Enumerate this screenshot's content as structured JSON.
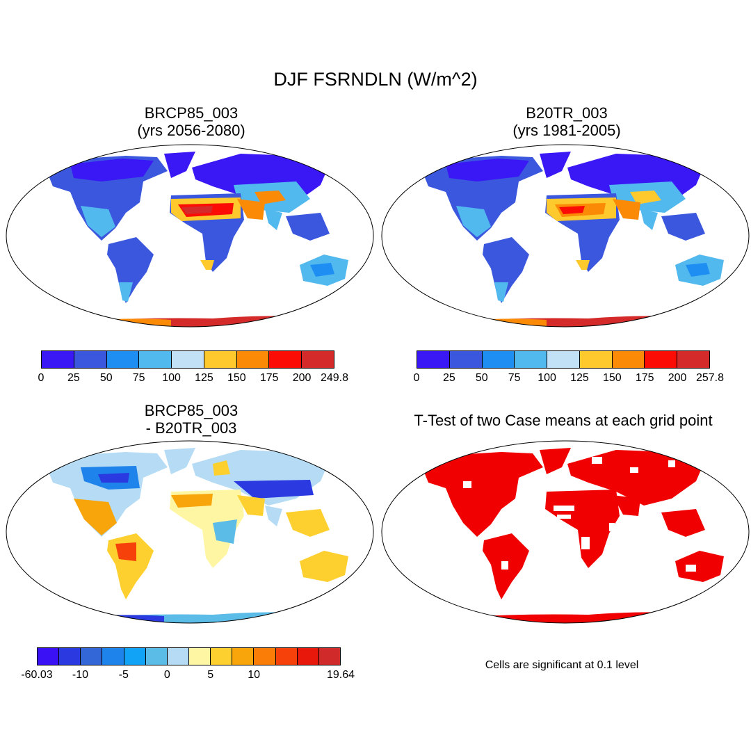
{
  "title": "DJF FSRNDLN (W/m^2)",
  "panels": {
    "case1": {
      "title_line1": "BRCP85_003",
      "title_line2": "(yrs 2056-2080)",
      "colorbar": {
        "colors": [
          "#3a17f5",
          "#3b57de",
          "#1e8ef2",
          "#52b9ef",
          "#c2e1f6",
          "#fdc92d",
          "#fb8a06",
          "#fb0d05",
          "#d42a2a"
        ],
        "labels": [
          "0",
          "25",
          "50",
          "75",
          "100",
          "125",
          "150",
          "175",
          "200",
          "249.8"
        ]
      }
    },
    "case2": {
      "title_line1": "B20TR_003",
      "title_line2": "(yrs 1981-2005)",
      "colorbar": {
        "colors": [
          "#3a17f5",
          "#3b57de",
          "#1e8ef2",
          "#52b9ef",
          "#c2e1f6",
          "#fdc92d",
          "#fb8a06",
          "#fb0d05",
          "#d42a2a"
        ],
        "labels": [
          "0",
          "25",
          "50",
          "75",
          "100",
          "125",
          "150",
          "175",
          "200",
          "257.8"
        ]
      }
    },
    "diff": {
      "title_line1": "BRCP85_003",
      "title_line2": "- B20TR_003",
      "colorbar": {
        "colors": [
          "#3a10f4",
          "#2b3ae0",
          "#3366d6",
          "#1f83ec",
          "#11a3f5",
          "#5cbce8",
          "#b5dcf4",
          "#fff6a4",
          "#fdd030",
          "#f8a40b",
          "#f97d06",
          "#f6420a",
          "#e8190a",
          "#d12a2a"
        ],
        "labels": [
          {
            "text": "-60.03",
            "index": 0
          },
          {
            "text": "-10",
            "index": 2
          },
          {
            "text": "-5",
            "index": 4
          },
          {
            "text": "0",
            "index": 6
          },
          {
            "text": "5",
            "index": 8
          },
          {
            "text": "10",
            "index": 10
          },
          {
            "text": "19.64",
            "index": 14
          }
        ]
      }
    },
    "ttest": {
      "title": "T-Test of two Case means at each grid point",
      "note": "Cells are significant at 0.1 level",
      "significant_color": "#f00000"
    }
  }
}
